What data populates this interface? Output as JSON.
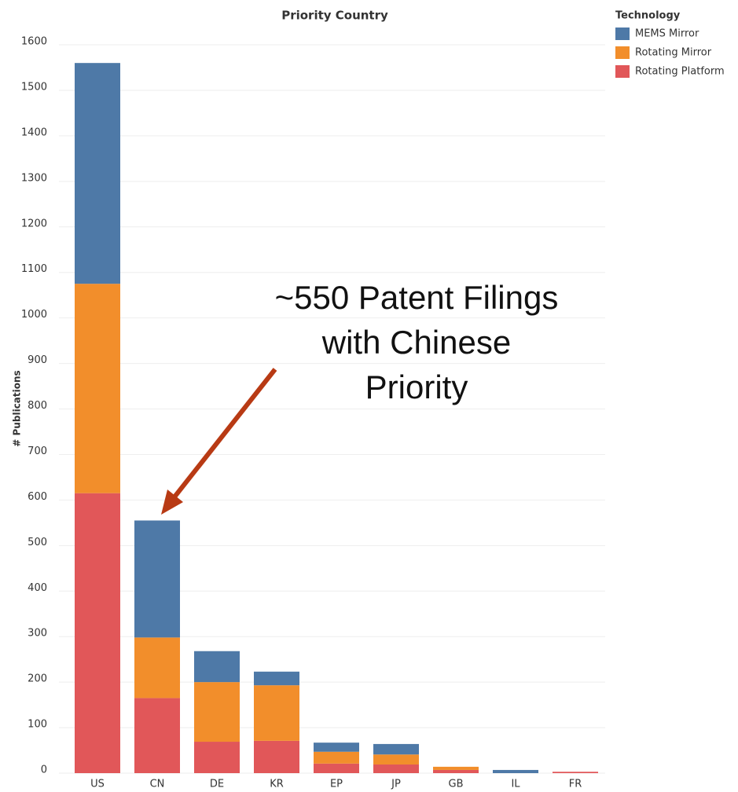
{
  "chart_data": {
    "type": "stacked_bar",
    "title": "Priority Country",
    "y_label": "# Publications",
    "legend_title": "Technology",
    "categories": [
      "US",
      "CN",
      "DE",
      "KR",
      "EP",
      "JP",
      "GB",
      "IL",
      "FR"
    ],
    "series": [
      {
        "name": "MEMS Mirror",
        "color": "#4e79a7",
        "values": [
          485,
          257,
          68,
          30,
          20,
          23,
          0,
          7,
          0
        ]
      },
      {
        "name": "Rotating Mirror",
        "color": "#f28e2b",
        "values": [
          460,
          133,
          131,
          122,
          26,
          22,
          7,
          0,
          0
        ]
      },
      {
        "name": "Rotating Platform",
        "color": "#e15759",
        "values": [
          615,
          165,
          69,
          71,
          21,
          19,
          7,
          0,
          3
        ]
      }
    ],
    "ylim": [
      0,
      1600
    ],
    "yticks": [
      0,
      100,
      200,
      300,
      400,
      500,
      600,
      700,
      800,
      900,
      1000,
      1100,
      1200,
      1300,
      1400,
      1500,
      1600
    ],
    "grid": true,
    "annotation": [
      "~550 Patent Filings",
      "with Chinese",
      "Priority"
    ]
  }
}
